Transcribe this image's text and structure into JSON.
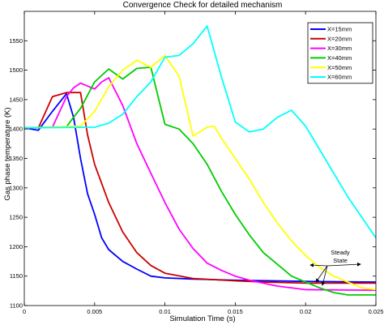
{
  "chart_data": {
    "type": "line",
    "title": "Convergence Check for detailed mechanism",
    "xlabel": "Simulation Time (s)",
    "ylabel": "Gas phase temperature (K)",
    "xlim": [
      0,
      0.025
    ],
    "ylim": [
      1100,
      1600
    ],
    "x_ticks": [
      "0",
      "0.005",
      "0.01",
      "0.015",
      "0.02",
      "0.025"
    ],
    "y_ticks": [
      "1100",
      "1150",
      "1200",
      "1250",
      "1300",
      "1350",
      "1400",
      "1450",
      "1500",
      "1550"
    ],
    "legend_position": "top-right",
    "annotation": "Steady State",
    "series": [
      {
        "name": "X=15mm",
        "color": "#0000ff",
        "points": [
          [
            0,
            1402
          ],
          [
            0.001,
            1398
          ],
          [
            0.002,
            1430
          ],
          [
            0.003,
            1460
          ],
          [
            0.0035,
            1420
          ],
          [
            0.004,
            1350
          ],
          [
            0.0045,
            1290
          ],
          [
            0.005,
            1255
          ],
          [
            0.0055,
            1215
          ],
          [
            0.006,
            1195
          ],
          [
            0.007,
            1175
          ],
          [
            0.008,
            1162
          ],
          [
            0.009,
            1150
          ],
          [
            0.01,
            1147
          ],
          [
            0.012,
            1145
          ],
          [
            0.015,
            1143
          ],
          [
            0.02,
            1141
          ],
          [
            0.025,
            1140
          ]
        ]
      },
      {
        "name": "X=20mm",
        "color": "#cc0000",
        "points": [
          [
            0,
            1402
          ],
          [
            0.001,
            1402
          ],
          [
            0.002,
            1455
          ],
          [
            0.003,
            1462
          ],
          [
            0.004,
            1462
          ],
          [
            0.0045,
            1390
          ],
          [
            0.005,
            1340
          ],
          [
            0.006,
            1275
          ],
          [
            0.007,
            1225
          ],
          [
            0.008,
            1190
          ],
          [
            0.009,
            1168
          ],
          [
            0.01,
            1155
          ],
          [
            0.012,
            1146
          ],
          [
            0.015,
            1142
          ],
          [
            0.017,
            1140
          ],
          [
            0.02,
            1138
          ],
          [
            0.025,
            1138
          ]
        ]
      },
      {
        "name": "X=30mm",
        "color": "#ff00ff",
        "points": [
          [
            0,
            1402
          ],
          [
            0.002,
            1403
          ],
          [
            0.003,
            1455
          ],
          [
            0.0035,
            1470
          ],
          [
            0.004,
            1478
          ],
          [
            0.005,
            1468
          ],
          [
            0.0055,
            1480
          ],
          [
            0.006,
            1487
          ],
          [
            0.007,
            1440
          ],
          [
            0.008,
            1375
          ],
          [
            0.009,
            1325
          ],
          [
            0.01,
            1275
          ],
          [
            0.011,
            1230
          ],
          [
            0.012,
            1197
          ],
          [
            0.013,
            1172
          ],
          [
            0.014,
            1160
          ],
          [
            0.015,
            1150
          ],
          [
            0.016,
            1143
          ],
          [
            0.018,
            1133
          ],
          [
            0.02,
            1127
          ],
          [
            0.025,
            1126
          ]
        ]
      },
      {
        "name": "X=40mm",
        "color": "#00cc00",
        "points": [
          [
            0,
            1402
          ],
          [
            0.003,
            1404
          ],
          [
            0.0035,
            1420
          ],
          [
            0.004,
            1435
          ],
          [
            0.005,
            1480
          ],
          [
            0.006,
            1502
          ],
          [
            0.007,
            1485
          ],
          [
            0.008,
            1503
          ],
          [
            0.009,
            1505
          ],
          [
            0.01,
            1408
          ],
          [
            0.011,
            1400
          ],
          [
            0.012,
            1375
          ],
          [
            0.013,
            1340
          ],
          [
            0.014,
            1295
          ],
          [
            0.015,
            1255
          ],
          [
            0.016,
            1220
          ],
          [
            0.017,
            1190
          ],
          [
            0.018,
            1170
          ],
          [
            0.019,
            1150
          ],
          [
            0.02,
            1140
          ],
          [
            0.021,
            1130
          ],
          [
            0.022,
            1122
          ],
          [
            0.023,
            1118
          ],
          [
            0.025,
            1118
          ]
        ]
      },
      {
        "name": "X=50mm",
        "color": "#ffff00",
        "points": [
          [
            0,
            1402
          ],
          [
            0.004,
            1405
          ],
          [
            0.005,
            1430
          ],
          [
            0.006,
            1472
          ],
          [
            0.007,
            1500
          ],
          [
            0.008,
            1517
          ],
          [
            0.009,
            1505
          ],
          [
            0.01,
            1525
          ],
          [
            0.011,
            1490
          ],
          [
            0.0115,
            1440
          ],
          [
            0.012,
            1388
          ],
          [
            0.013,
            1403
          ],
          [
            0.0135,
            1405
          ],
          [
            0.014,
            1385
          ],
          [
            0.015,
            1350
          ],
          [
            0.016,
            1315
          ],
          [
            0.017,
            1275
          ],
          [
            0.018,
            1240
          ],
          [
            0.019,
            1210
          ],
          [
            0.02,
            1185
          ],
          [
            0.021,
            1165
          ],
          [
            0.022,
            1150
          ],
          [
            0.023,
            1140
          ],
          [
            0.024,
            1130
          ],
          [
            0.025,
            1127
          ]
        ]
      },
      {
        "name": "X=60mm",
        "color": "#00ffff",
        "points": [
          [
            0,
            1402
          ],
          [
            0.005,
            1403
          ],
          [
            0.006,
            1410
          ],
          [
            0.007,
            1425
          ],
          [
            0.008,
            1455
          ],
          [
            0.009,
            1480
          ],
          [
            0.01,
            1522
          ],
          [
            0.011,
            1525
          ],
          [
            0.012,
            1545
          ],
          [
            0.013,
            1575
          ],
          [
            0.014,
            1490
          ],
          [
            0.015,
            1412
          ],
          [
            0.016,
            1395
          ],
          [
            0.017,
            1400
          ],
          [
            0.018,
            1420
          ],
          [
            0.019,
            1432
          ],
          [
            0.02,
            1405
          ],
          [
            0.021,
            1365
          ],
          [
            0.022,
            1325
          ],
          [
            0.023,
            1285
          ],
          [
            0.024,
            1250
          ],
          [
            0.025,
            1215
          ]
        ]
      }
    ]
  }
}
